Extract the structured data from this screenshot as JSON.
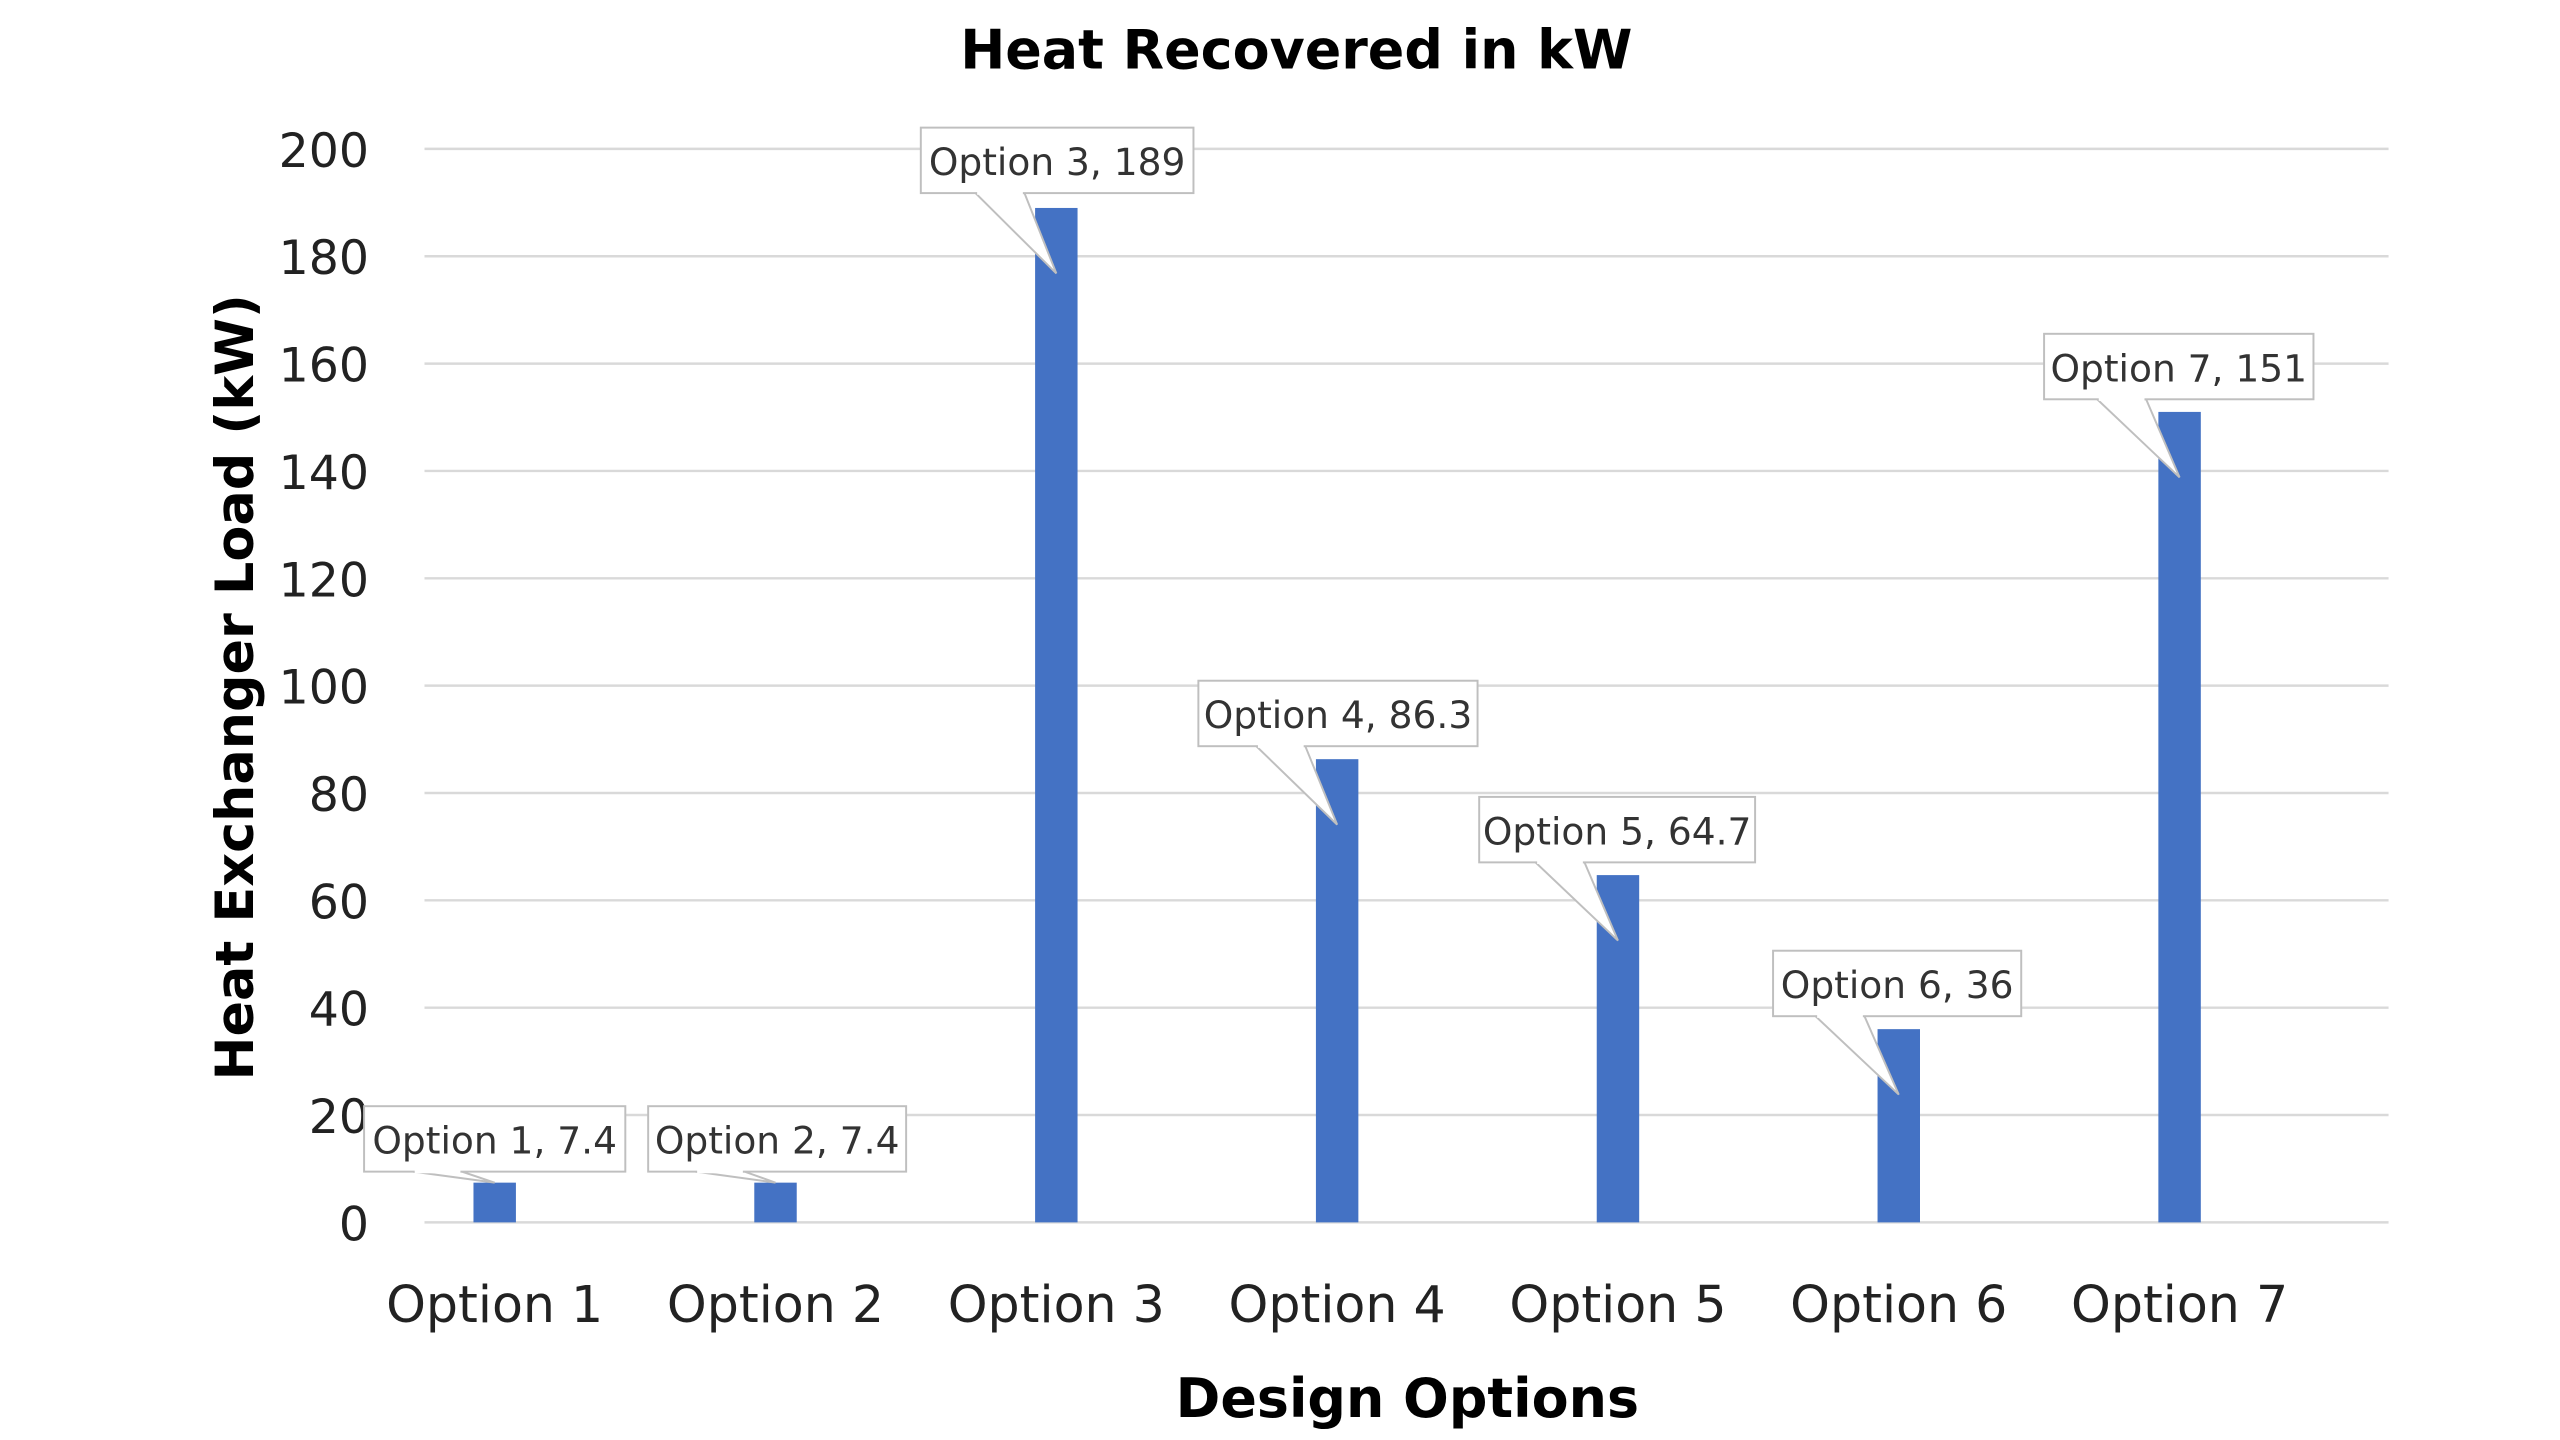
{
  "chart_data": {
    "type": "bar",
    "title": "Heat Recovered in kW",
    "xlabel": "Design Options",
    "ylabel": "Heat Exchanger Load (kW)",
    "categories": [
      "Option 1",
      "Option 2",
      "Option 3",
      "Option 4",
      "Option 5",
      "Option 6",
      "Option 7"
    ],
    "values": [
      7.4,
      7.4,
      189,
      86.3,
      64.7,
      36,
      151
    ],
    "data_labels": [
      "Option 1, 7.4",
      "Option 2, 7.4",
      "Option 3, 189",
      "Option 4, 86.3",
      "Option 5, 64.7",
      "Option 6, 36",
      "Option 7, 151"
    ],
    "ylim": [
      0,
      200
    ],
    "yticks": [
      0,
      20,
      40,
      60,
      80,
      100,
      120,
      140,
      160,
      180,
      200
    ],
    "grid": true,
    "legend": "none",
    "colors": {
      "bar": "#4472C4",
      "grid": "#D9D9D9",
      "text": "#000000"
    }
  }
}
